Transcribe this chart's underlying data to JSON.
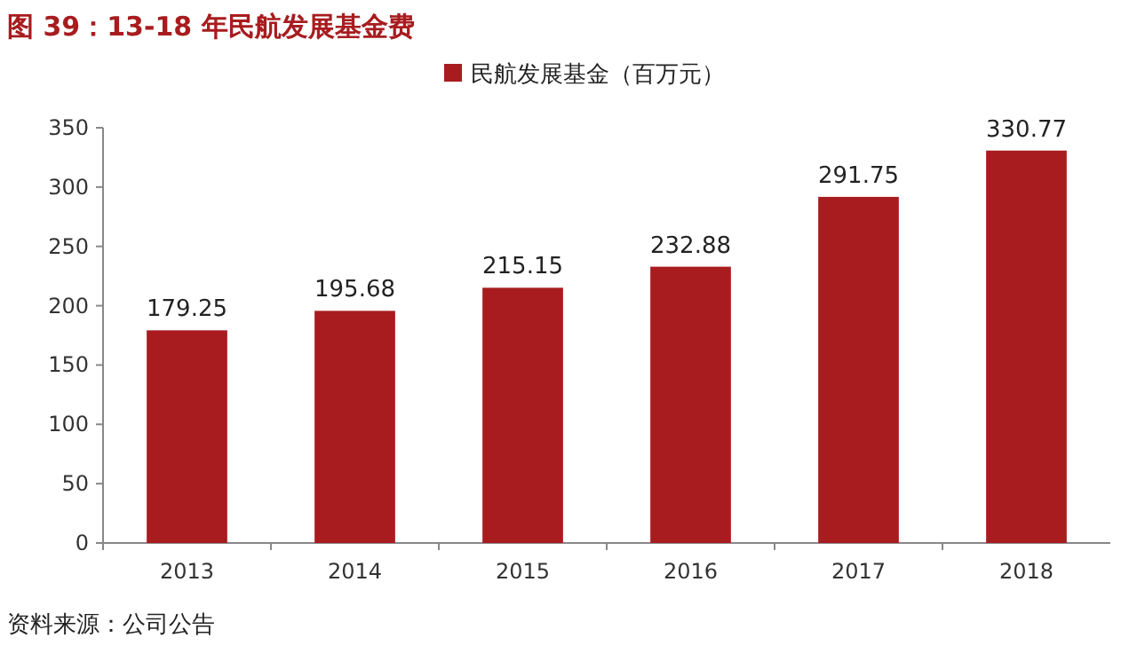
{
  "chart_data": {
    "type": "bar",
    "title": "图 39：13-18 年民航发展基金费",
    "categories": [
      "2013",
      "2014",
      "2015",
      "2016",
      "2017",
      "2018"
    ],
    "series": [
      {
        "name": "民航发展基金（百万元）",
        "color": "#a81c1f",
        "values": [
          179.25,
          195.68,
          215.15,
          232.88,
          291.75,
          330.77
        ]
      }
    ],
    "ylim": [
      0,
      350
    ],
    "yticks": [
      0,
      50,
      100,
      150,
      200,
      250,
      300,
      350
    ],
    "data_labels": true,
    "legend": "top",
    "annotations": [
      "资料来源：公司公告"
    ]
  }
}
